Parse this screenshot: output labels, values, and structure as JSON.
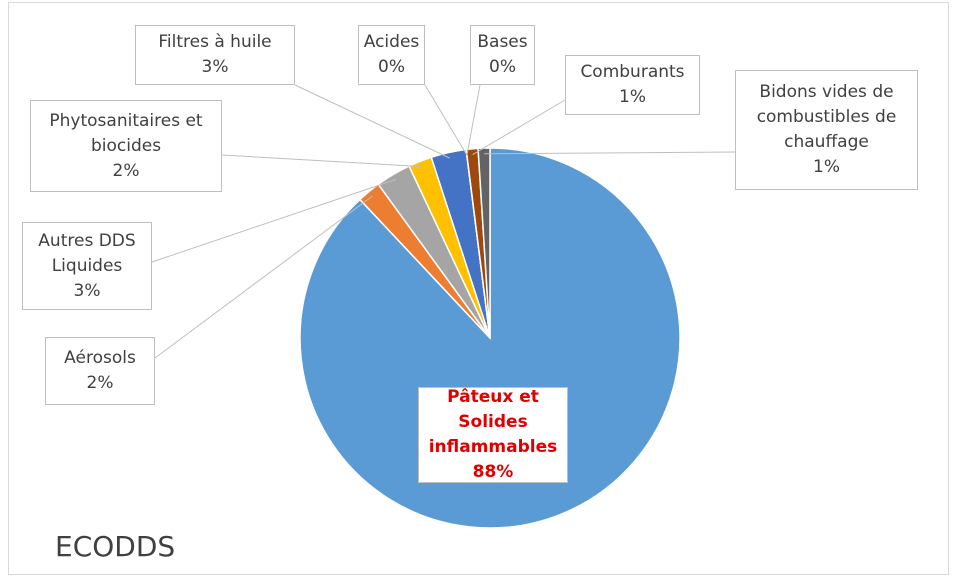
{
  "chart_data": {
    "type": "pie",
    "title": "ECODDS",
    "categories": [
      "Pâteux et Solides inflammables",
      "Aérosols",
      "Autres DDS Liquides",
      "Phytosanitaires et biocides",
      "Filtres à  huile",
      "Acides",
      "Bases",
      "Comburants",
      "Bidons vides de combustibles de chauffage"
    ],
    "values": [
      88,
      2,
      3,
      2,
      3,
      0,
      0,
      1,
      1
    ],
    "value_labels": [
      "88%",
      "2%",
      "3%",
      "2%",
      "3%",
      "0%",
      "0%",
      "1%",
      "1%"
    ],
    "colors": [
      "#5b9bd5",
      "#ed7d31",
      "#a5a5a5",
      "#ffc000",
      "#4472c4",
      "#70ad47",
      "#264478",
      "#9e480e",
      "#636363"
    ]
  }
}
